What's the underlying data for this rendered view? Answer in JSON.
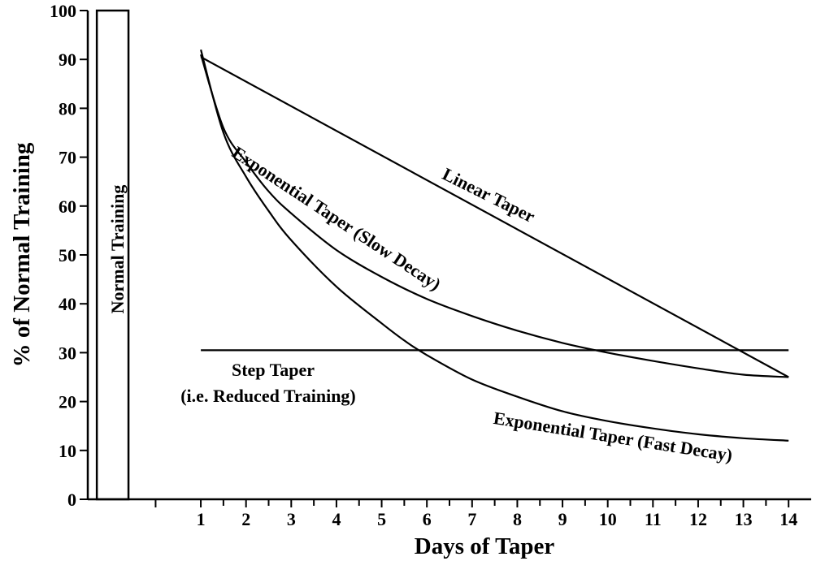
{
  "chart_data": {
    "type": "line",
    "title": "",
    "xlabel": "Days of Taper",
    "ylabel": "% of Normal Training",
    "xlim": [
      -1.5,
      14.5
    ],
    "ylim": [
      0,
      100
    ],
    "x_ticks": [
      1,
      2,
      3,
      4,
      5,
      6,
      7,
      8,
      9,
      10,
      11,
      12,
      13,
      14
    ],
    "y_ticks": [
      0,
      10,
      20,
      30,
      40,
      50,
      60,
      70,
      80,
      90,
      100
    ],
    "grid": false,
    "bar": {
      "label": "Normal Training",
      "value": 100
    },
    "series": [
      {
        "name": "Linear Taper",
        "points": [
          [
            1,
            90.5
          ],
          [
            14,
            25
          ]
        ]
      },
      {
        "name": "Exponential Taper (Slow Decay)",
        "points": [
          [
            1,
            91
          ],
          [
            1.5,
            76
          ],
          [
            2,
            69
          ],
          [
            2.5,
            63
          ],
          [
            3,
            58.5
          ],
          [
            4,
            51
          ],
          [
            5,
            45.5
          ],
          [
            6,
            41
          ],
          [
            7,
            37.5
          ],
          [
            8,
            34.5
          ],
          [
            9,
            32
          ],
          [
            10,
            30
          ],
          [
            11,
            28.3
          ],
          [
            12,
            26.8
          ],
          [
            13,
            25.5
          ],
          [
            14,
            25
          ]
        ]
      },
      {
        "name": "Exponential Taper (Fast Decay)",
        "points": [
          [
            1,
            92
          ],
          [
            1.5,
            75
          ],
          [
            2,
            66
          ],
          [
            2.5,
            59
          ],
          [
            3,
            53
          ],
          [
            4,
            43.5
          ],
          [
            5,
            36
          ],
          [
            5.5,
            32.5
          ],
          [
            6,
            29.5
          ],
          [
            7,
            24.5
          ],
          [
            8,
            21
          ],
          [
            9,
            18
          ],
          [
            10,
            16
          ],
          [
            11,
            14.5
          ],
          [
            12,
            13.3
          ],
          [
            13,
            12.5
          ],
          [
            14,
            12
          ]
        ]
      },
      {
        "name": "Step Taper",
        "points": [
          [
            1,
            30.5
          ],
          [
            14,
            30.5
          ]
        ]
      }
    ],
    "annotations": {
      "linear": "Linear Taper",
      "slow": "Exponential Taper (Slow Decay)",
      "fast": "Exponential Taper (Fast Decay)",
      "step_line1": "Step Taper",
      "step_line2": "(i.e. Reduced Training)"
    }
  }
}
